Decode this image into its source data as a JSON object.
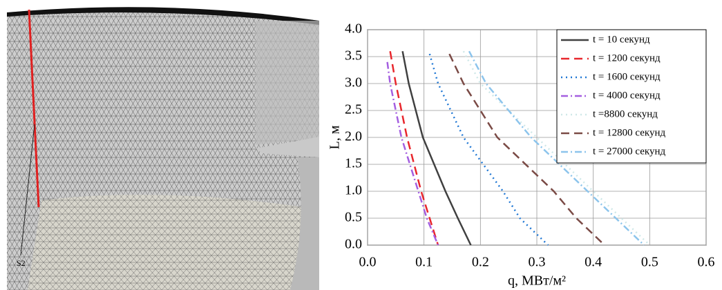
{
  "chart_data": {
    "type": "line",
    "annotation": "S2",
    "xlabel": "q, МВт/м²",
    "ylabel": "L, м",
    "xlim": [
      0,
      0.6
    ],
    "ylim": [
      0,
      4
    ],
    "xticks": [
      {
        "value": 0,
        "label": "0.0"
      },
      0.1,
      0.2,
      0.3,
      0.4,
      0.5,
      0.6
    ],
    "yticks": [
      {
        "value": 0,
        "label": "0.0"
      },
      0.5,
      {
        "value": 1,
        "label": "1.0"
      },
      1.5,
      {
        "value": 2,
        "label": "2.0"
      },
      2.5,
      {
        "value": 3,
        "label": "3.0"
      },
      3.5,
      {
        "value": 4,
        "label": "4.0"
      }
    ],
    "grid": true,
    "legend": "upper right",
    "series": [
      {
        "name": "t = 10 секунд",
        "color": "#404040",
        "dash": "solid",
        "x": [
          0.062,
          0.073,
          0.098,
          0.138,
          0.16,
          0.183
        ],
        "values": [
          3.6,
          3,
          2,
          1,
          0.5,
          0
        ]
      },
      {
        "name": "t = 1200 секунд",
        "color": "#e8262c",
        "dash": "dash",
        "x": [
          0.04,
          0.05,
          0.07,
          0.095,
          0.11,
          0.125
        ],
        "values": [
          3.6,
          3,
          2,
          1,
          0.5,
          0
        ]
      },
      {
        "name": "t = 1600 секунд",
        "color": "#1f77d4",
        "dash": "dot",
        "x": [
          0.11,
          0.125,
          0.17,
          0.24,
          0.27,
          0.32
        ],
        "values": [
          3.55,
          3,
          2,
          1,
          0.5,
          0
        ]
      },
      {
        "name": "t = 4000 секунд",
        "color": "#a45ee0",
        "dash": "dashdot",
        "x": [
          0.035,
          0.04,
          0.06,
          0.09,
          0.105,
          0.125
        ],
        "values": [
          3.4,
          3,
          2,
          1,
          0.5,
          0
        ]
      },
      {
        "name": "t =8800 секунд",
        "color": "#cfe8e8",
        "dash": "dot",
        "x": [
          0.17,
          0.2,
          0.3,
          0.4,
          0.45,
          0.5
        ],
        "values": [
          3.6,
          3,
          2,
          1,
          0.5,
          0
        ]
      },
      {
        "name": "t = 12800 секунд",
        "color": "#7a4a45",
        "dash": "dash",
        "x": [
          0.145,
          0.17,
          0.23,
          0.33,
          0.37,
          0.42
        ],
        "values": [
          3.55,
          3,
          2,
          1,
          0.5,
          0
        ]
      },
      {
        "name": "t = 27000 секунд",
        "color": "#8cc4ec",
        "dash": "dashdot",
        "x": [
          0.18,
          0.21,
          0.29,
          0.39,
          0.44,
          0.49
        ],
        "values": [
          3.6,
          3,
          2,
          1,
          0.5,
          0
        ]
      }
    ]
  }
}
